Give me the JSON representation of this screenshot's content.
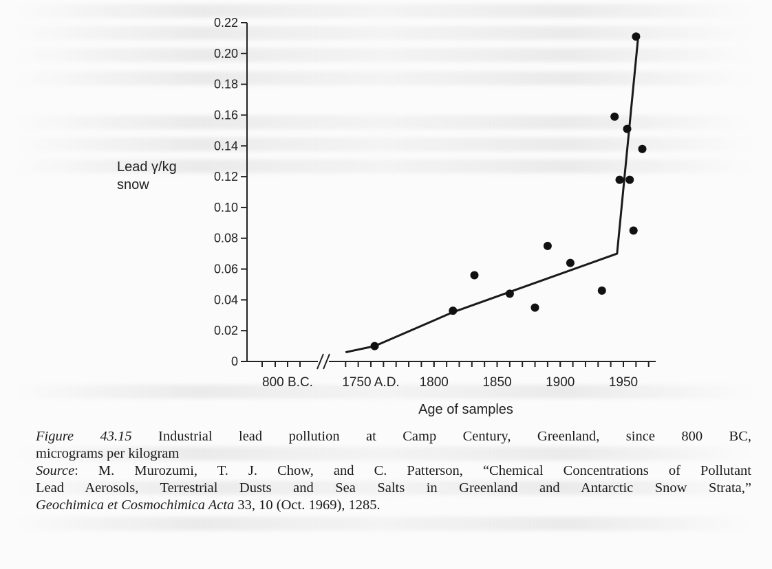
{
  "chart_data": {
    "type": "scatter",
    "ylabel_line1": "Lead γ/kg",
    "ylabel_line2": "snow",
    "xlabel": "Age of samples",
    "ylim": [
      0,
      0.22
    ],
    "yticks": [
      0,
      0.02,
      0.04,
      0.06,
      0.08,
      0.1,
      0.12,
      0.14,
      0.16,
      0.18,
      0.2,
      0.22
    ],
    "ytick_labels": [
      "0",
      "0.02",
      "0.04",
      "0.06",
      "0.08",
      "0.10",
      "0.12",
      "0.14",
      "0.16",
      "0.18",
      "0.20",
      "0.22"
    ],
    "xlim_ad": [
      1700,
      1975
    ],
    "xticks": [
      {
        "label": "800 B.C.",
        "bc_year": 800
      },
      {
        "label": "1750 A.D.",
        "year": 1750
      },
      {
        "label": "1800",
        "year": 1800
      },
      {
        "label": "1850",
        "year": 1850
      },
      {
        "label": "1900",
        "year": 1900
      },
      {
        "label": "1950",
        "year": 1950
      }
    ],
    "axis_break": true,
    "points": [
      {
        "year": 1753,
        "value": 0.01
      },
      {
        "year": 1815,
        "value": 0.033
      },
      {
        "year": 1832,
        "value": 0.056
      },
      {
        "year": 1860,
        "value": 0.044
      },
      {
        "year": 1880,
        "value": 0.035
      },
      {
        "year": 1890,
        "value": 0.075
      },
      {
        "year": 1908,
        "value": 0.064
      },
      {
        "year": 1933,
        "value": 0.046
      },
      {
        "year": 1943,
        "value": 0.159
      },
      {
        "year": 1947,
        "value": 0.118
      },
      {
        "year": 1953,
        "value": 0.151
      },
      {
        "year": 1955,
        "value": 0.118
      },
      {
        "year": 1958,
        "value": 0.085
      },
      {
        "year": 1960,
        "value": 0.211
      },
      {
        "year": 1965,
        "value": 0.138
      }
    ],
    "trend_line": [
      {
        "year": 1730,
        "value": 0.006
      },
      {
        "year": 1753,
        "value": 0.01
      },
      {
        "year": 1815,
        "value": 0.032
      },
      {
        "year": 1945,
        "value": 0.07
      },
      {
        "year": 1962,
        "value": 0.213
      }
    ]
  },
  "caption": {
    "figure_label": "Figure 43.15",
    "figure_text_line1": "Industrial lead pollution at Camp Century, Greenland, since 800 BC,",
    "figure_text_line2": "micrograms per kilogram",
    "source_label": "Source",
    "source_line1_rest": ": M. Murozumi, T. J. Chow, and C. Patterson, “Chemical Concentrations of Pollutant",
    "source_line2": "Lead Aerosols, Terrestrial Dusts and Sea Salts in Greenland and Antarctic Snow Strata,”",
    "journal": "Geochimica et Cosmochimica Acta",
    "journal_rest": " 33, 10 (Oct. 1969), 1285."
  }
}
